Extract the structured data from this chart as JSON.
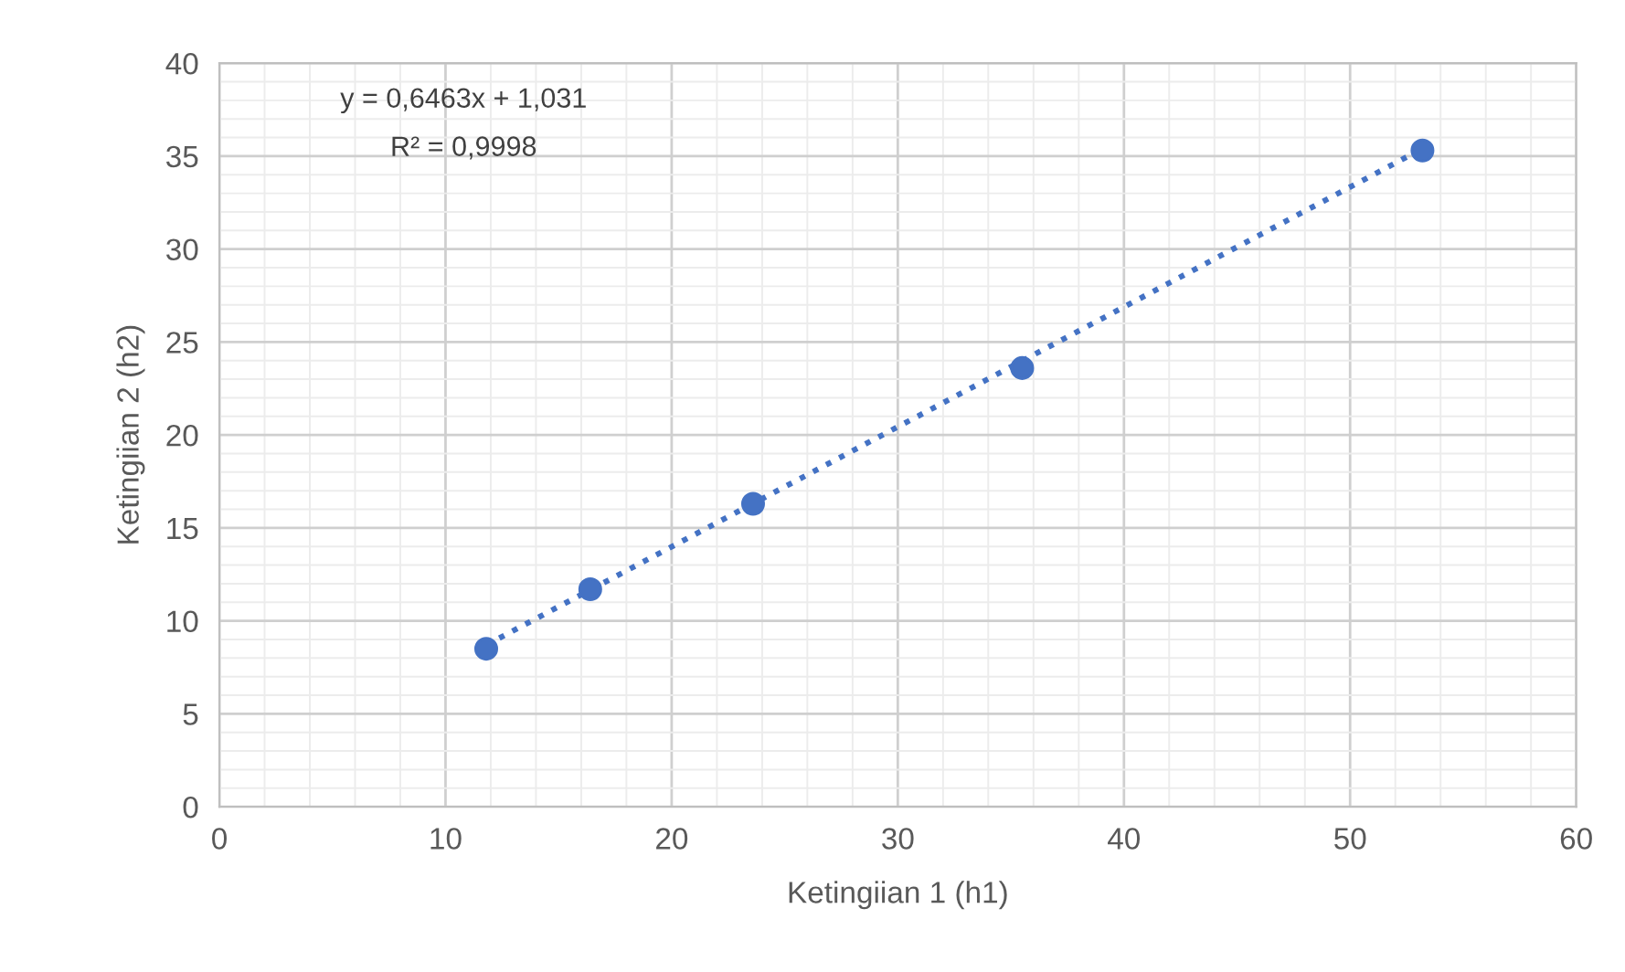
{
  "chart_data": {
    "type": "scatter",
    "xlabel": "Ketingiian 1 (h1)",
    "ylabel": "Ketingiian 2 (h2)",
    "x": [
      11.8,
      16.4,
      23.6,
      35.5,
      53.2
    ],
    "series": [
      {
        "color": "#4472c4",
        "marker": "circle",
        "values": [
          8.5,
          11.7,
          16.3,
          23.6,
          35.3
        ]
      },
      {
        "type": "line",
        "color": "#4472c4",
        "marker": "none",
        "line_style": "dotted",
        "x": [
          11.8,
          53.2
        ],
        "values": [
          8.7,
          35.4
        ]
      }
    ],
    "annotations": [
      "y = 0,6463x + 1,031",
      "R² = 0,9998"
    ],
    "xlim": [
      0,
      60
    ],
    "xticks": [
      0,
      10,
      20,
      30,
      40,
      50,
      60
    ],
    "ylim": [
      0,
      40
    ],
    "yticks": [
      0,
      5,
      10,
      15,
      20,
      25,
      30,
      35,
      40
    ],
    "grid": true,
    "legend": false
  }
}
